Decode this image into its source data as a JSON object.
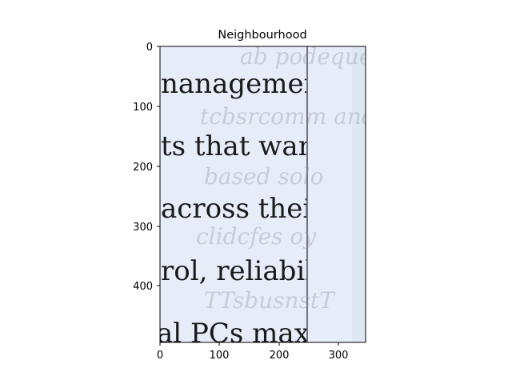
{
  "title": "Neighbourhood",
  "image": {
    "background_color": "#e6ecf8",
    "divider_color": "#6f7380",
    "text_lines": [
      "nanagement",
      "ts that want",
      "across their",
      "rol, reliabil-",
      "al PCs max-"
    ],
    "ghost_lines": [
      "ab podeques",
      "tcbsrcomm and",
      "based solo",
      "clidcfes oy",
      "TTsbusnstT"
    ]
  },
  "axes": {
    "x_ticks": [
      "0",
      "100",
      "200",
      "300"
    ],
    "y_ticks": [
      "0",
      "100",
      "200",
      "300",
      "400"
    ]
  }
}
